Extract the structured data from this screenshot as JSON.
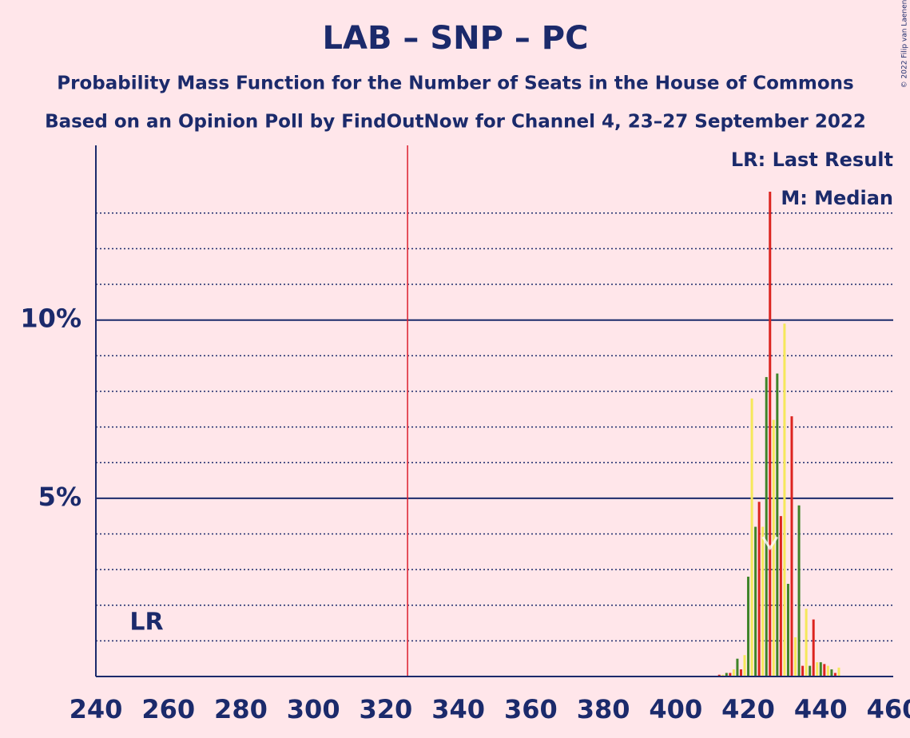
{
  "chart_data": {
    "type": "bar",
    "title": "LAB – SNP – PC",
    "subtitle": "Probability Mass Function for the Number of Seats in the House of Commons",
    "subtitle2": "Based on an Opinion Poll by FindOutNow for Channel 4, 23–27 September 2022",
    "copyright": "© 2022 Filip van Laenen",
    "legend": [
      "LR: Last Result",
      "M: Median"
    ],
    "last_result": {
      "x": 254,
      "label": "LR"
    },
    "median": 426,
    "majority": 326,
    "x": [
      412,
      413,
      414,
      415,
      416,
      417,
      418,
      419,
      420,
      421,
      422,
      423,
      424,
      425,
      426,
      427,
      428,
      429,
      430,
      431,
      432,
      433,
      434,
      435,
      436,
      437,
      438,
      439,
      440,
      441,
      442,
      443,
      444,
      445
    ],
    "values": [
      0.05,
      0.05,
      0.1,
      0.1,
      0.2,
      0.5,
      0.2,
      0.6,
      2.8,
      7.8,
      4.2,
      4.9,
      4.2,
      8.4,
      13.6,
      7.2,
      8.5,
      4.5,
      9.9,
      2.6,
      7.3,
      1.1,
      4.8,
      0.3,
      1.9,
      0.3,
      1.6,
      0.4,
      0.4,
      0.35,
      0.3,
      0.2,
      0.1,
      0.25
    ],
    "colors": [
      "#dc241f",
      "#f5e85a",
      "#3f8428",
      "#dc241f",
      "#f5e85a",
      "#3f8428",
      "#dc241f",
      "#f5e85a",
      "#3f8428",
      "#f5e85a",
      "#3f8428",
      "#dc241f",
      "#f5e85a",
      "#3f8428",
      "#dc241f",
      "#f5e85a",
      "#3f8428",
      "#dc241f",
      "#f5e85a",
      "#3f8428",
      "#dc241f",
      "#f5e85a",
      "#3f8428",
      "#dc241f",
      "#f5e85a",
      "#3f8428",
      "#dc241f",
      "#f5e85a",
      "#3f8428",
      "#dc241f",
      "#f5e85a",
      "#3f8428",
      "#dc241f",
      "#f5e85a"
    ],
    "xlim": [
      240,
      460
    ],
    "xticks": [
      240,
      260,
      280,
      300,
      320,
      340,
      360,
      380,
      400,
      420,
      440,
      460
    ],
    "ylim": [
      0,
      14.9
    ],
    "yticks": [
      {
        "value": 5,
        "label": "5%"
      },
      {
        "value": 10,
        "label": "10%"
      }
    ],
    "minor_yticks": [
      1,
      2,
      3,
      4,
      6,
      7,
      8,
      9,
      11,
      12,
      13
    ]
  }
}
